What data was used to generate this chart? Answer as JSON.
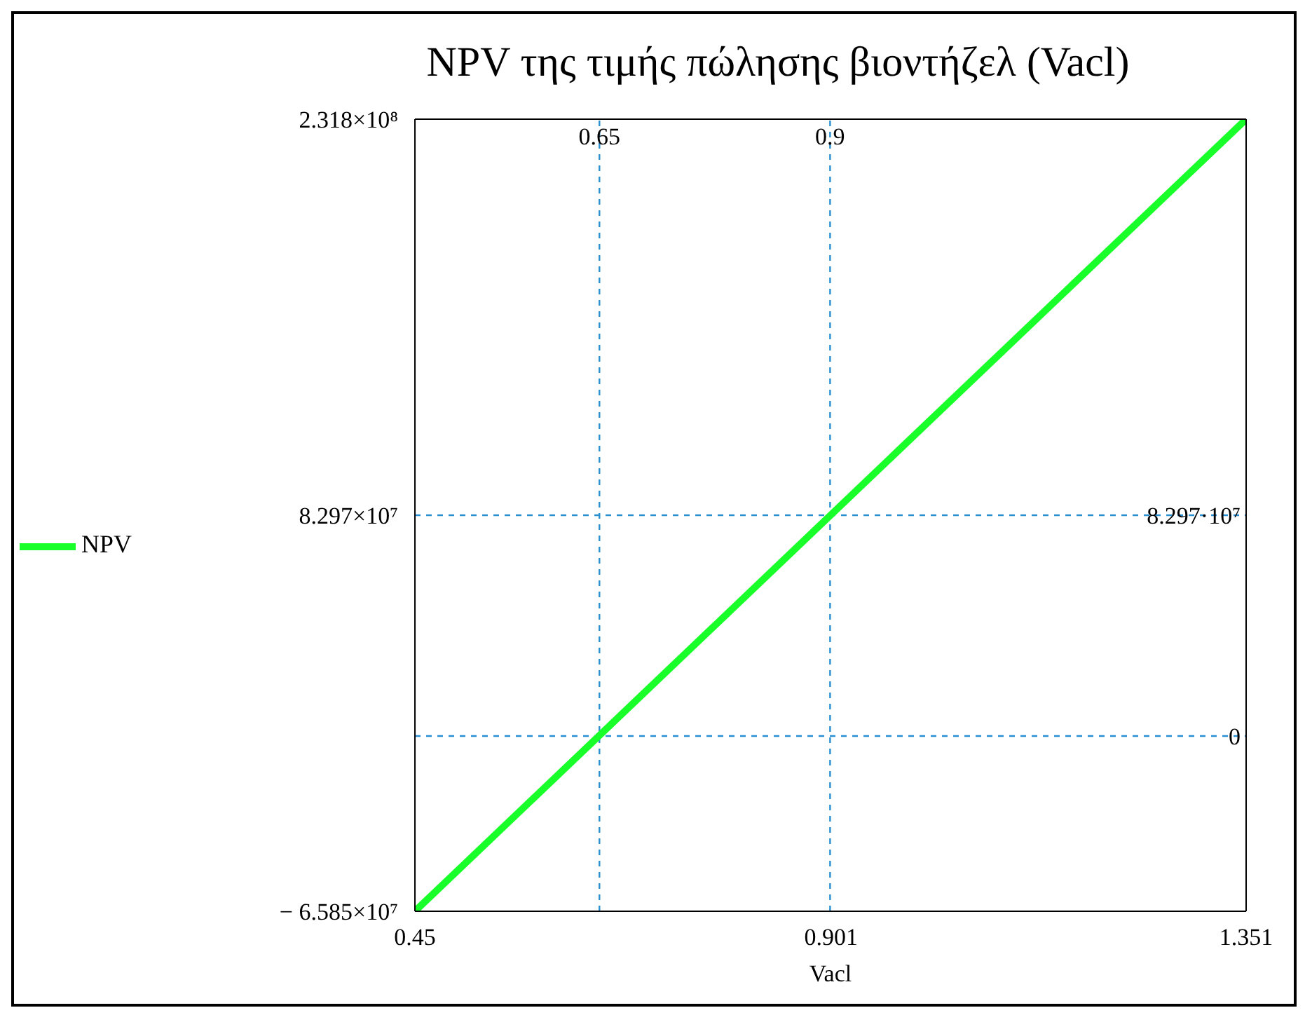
{
  "chart_data": {
    "type": "line",
    "title": "NPV της τιμής πώλησης βιοντήζελ (Vacl)",
    "xlabel": "Vacl",
    "x": [
      0.45,
      1.351
    ],
    "series": [
      {
        "name": "NPV",
        "color": "#19ff2a",
        "values": [
          -65850000,
          231800000
        ]
      }
    ],
    "xlim": [
      0.45,
      1.351
    ],
    "xticks": [
      0.45,
      0.901,
      1.351
    ],
    "ylim": [
      -65850000,
      231800000
    ],
    "yticks": [
      {
        "value": -65850000,
        "label": "− 6.585×10⁷"
      },
      {
        "value": 82970000,
        "label": "8.297×10⁷"
      },
      {
        "value": 231800000,
        "label": "2.318×10⁸"
      }
    ],
    "ref_lines": [
      {
        "axis": "x",
        "value": 0.65,
        "label": "0.65",
        "color": "#2a8fd0",
        "line_style": "dashed"
      },
      {
        "axis": "x",
        "value": 0.9,
        "label": "0.9",
        "color": "#2a8fd0",
        "line_style": "dashed"
      },
      {
        "axis": "y",
        "value": 82970000,
        "label": "8.297·10⁷",
        "color": "#2a8fd0",
        "line_style": "dashed"
      },
      {
        "axis": "y",
        "value": 0,
        "label": "0",
        "color": "#2a8fd0",
        "line_style": "dashed"
      }
    ],
    "grid": false,
    "legend": "left",
    "marker": "none",
    "line_style": "solid"
  }
}
